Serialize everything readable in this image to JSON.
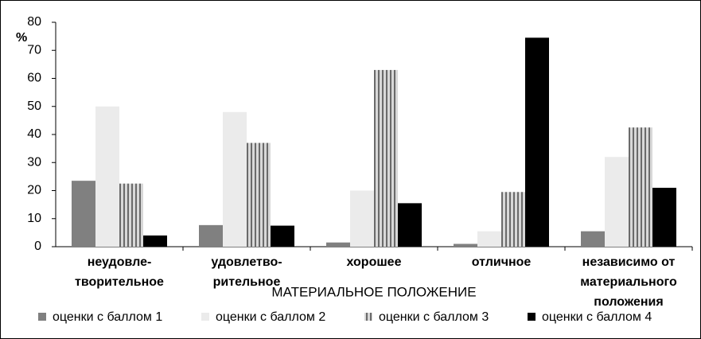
{
  "chart_data": {
    "type": "bar",
    "ylabel": "%",
    "xlabel": "МАТЕРИАЛЬНОЕ ПОЛОЖЕНИЕ",
    "categories": [
      "неудовле-\nтворительное",
      "удовлетво-\nрительное",
      "хорошее",
      "отличное",
      "независимо от\nматериального\nположения"
    ],
    "series": [
      {
        "name": "оценки с баллом 1",
        "color": "#808080",
        "values": [
          23.5,
          7.7,
          1.5,
          1,
          5.5
        ]
      },
      {
        "name": "оценки с баллом 2",
        "color": "#ebebeb",
        "values": [
          50,
          48,
          20,
          5.5,
          32
        ]
      },
      {
        "name": "оценки с баллом 3",
        "color": "#9a9a9a",
        "values": [
          22.5,
          37,
          63,
          19.5,
          42.5
        ]
      },
      {
        "name": "оценки с баллом 4",
        "color": "#000000",
        "values": [
          4,
          7.5,
          15.5,
          74.5,
          21
        ]
      }
    ],
    "ylim": [
      0,
      80
    ],
    "yticks": [
      0,
      10,
      20,
      30,
      40,
      50,
      60,
      70,
      80
    ],
    "legend": "bottom"
  }
}
